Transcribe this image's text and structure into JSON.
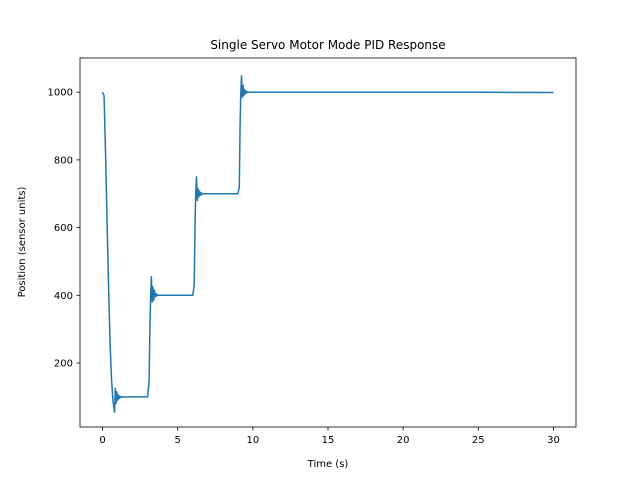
{
  "chart_data": {
    "type": "line",
    "title": "Single Servo Motor Mode PID Response",
    "xlabel": "Time (s)",
    "ylabel": "Position (sensor units)",
    "xlim": [
      -1.5,
      31.5
    ],
    "ylim": [
      11,
      1101
    ],
    "xticks": [
      0,
      5,
      10,
      15,
      20,
      25,
      30
    ],
    "yticks": [
      200,
      400,
      600,
      800,
      1000
    ],
    "grid": false,
    "series": [
      {
        "color": "#1f77b4",
        "x": [
          0.0,
          0.1,
          0.2,
          0.3,
          0.4,
          0.5,
          0.6,
          0.7,
          0.75,
          0.8,
          0.85,
          0.9,
          0.95,
          1.0,
          1.05,
          1.1,
          1.15,
          1.2,
          1.3,
          1.4,
          1.6,
          2.0,
          2.5,
          3.0,
          3.1,
          3.15,
          3.2,
          3.25,
          3.3,
          3.35,
          3.4,
          3.45,
          3.5,
          3.55,
          3.6,
          3.65,
          3.7,
          3.8,
          4.0,
          4.5,
          5.0,
          5.5,
          6.0,
          6.1,
          6.15,
          6.2,
          6.25,
          6.3,
          6.35,
          6.4,
          6.45,
          6.5,
          6.55,
          6.6,
          6.65,
          6.7,
          6.8,
          7.0,
          7.5,
          8.0,
          8.5,
          9.0,
          9.1,
          9.15,
          9.2,
          9.25,
          9.3,
          9.35,
          9.4,
          9.45,
          9.5,
          9.55,
          9.6,
          9.65,
          9.7,
          9.8,
          10.0,
          11.0,
          15.0,
          20.0,
          25.0,
          30.0
        ],
        "y": [
          1000,
          990,
          820,
          620,
          430,
          260,
          150,
          85,
          70,
          55,
          125,
          80,
          115,
          90,
          105,
          95,
          102,
          98,
          101,
          99,
          100,
          100,
          100,
          100,
          150,
          300,
          400,
          455,
          380,
          425,
          385,
          415,
          395,
          405,
          398,
          402,
          400,
          400,
          400,
          400,
          400,
          400,
          400,
          430,
          600,
          700,
          750,
          680,
          715,
          690,
          708,
          695,
          703,
          698,
          701,
          700,
          700,
          700,
          700,
          700,
          700,
          700,
          720,
          900,
          1000,
          1048,
          985,
          1020,
          990,
          1008,
          995,
          1003,
          998,
          1001,
          1000,
          1000,
          1000,
          1000,
          1000,
          1000,
          1000,
          999
        ]
      }
    ]
  }
}
